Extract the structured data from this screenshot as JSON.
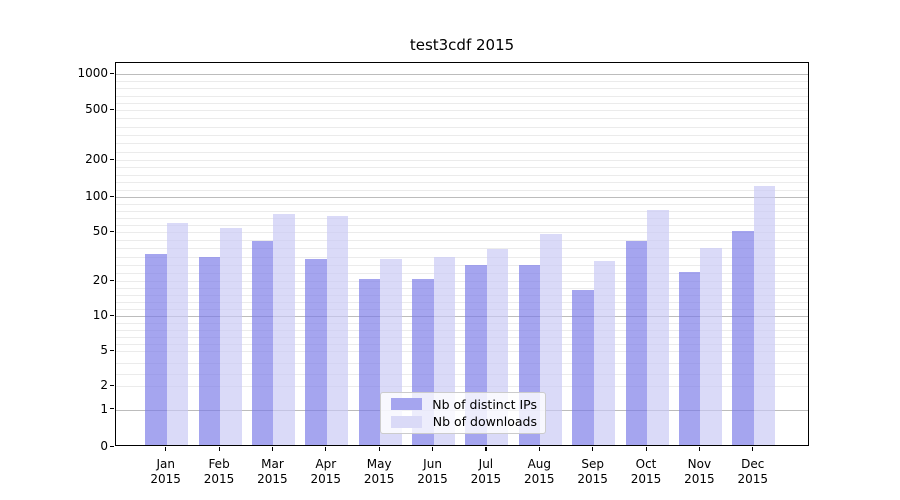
{
  "title": "test3cdf 2015",
  "chart_data": {
    "type": "bar",
    "title": "test3cdf 2015",
    "categories": [
      "Jan 2015",
      "Feb 2015",
      "Mar 2015",
      "Apr 2015",
      "May 2015",
      "Jun 2015",
      "Jul 2015",
      "Aug 2015",
      "Sep 2015",
      "Oct 2015",
      "Nov 2015",
      "Dec 2015"
    ],
    "series": [
      {
        "name": "Nb of distinct IPs",
        "color": "rgba(122,122,231,0.68)",
        "legend_color": "#a5a5ef",
        "values": [
          32,
          30,
          41,
          29,
          20,
          20,
          26,
          26,
          16,
          41,
          23,
          49
        ]
      },
      {
        "name": "Nb of downloads",
        "color": "rgba(200,200,244,0.68)",
        "legend_color": "#dadaf7",
        "values": [
          58,
          52,
          69,
          66,
          29,
          30,
          35,
          46,
          28,
          74,
          36,
          118
        ]
      }
    ],
    "xlabel": "",
    "ylabel": "",
    "y_tick_labels": [
      "0",
      "1",
      "2",
      "5",
      "10",
      "20",
      "50",
      "100",
      "200",
      "500",
      "1000"
    ],
    "y_tick_values": [
      0,
      1,
      2,
      5,
      10,
      20,
      50,
      100,
      200,
      500,
      1000
    ],
    "ylim": [
      0,
      1000
    ],
    "scale": "log-like (0 linear segment, log decades above 1)",
    "grid": true,
    "major_grid_values": [
      1,
      10,
      100,
      1000
    ],
    "legend_position": "lower center",
    "legend_entries": [
      "Nb of distinct IPs",
      "Nb of downloads"
    ]
  },
  "colors": {
    "bar_distinct_ips": "#a5a5ef",
    "bar_downloads": "#dadaf7",
    "grid_major": "#bcbcbc",
    "grid_minor": "#ebebeb",
    "axis": "#000000",
    "legend_border": "#cccccc"
  }
}
